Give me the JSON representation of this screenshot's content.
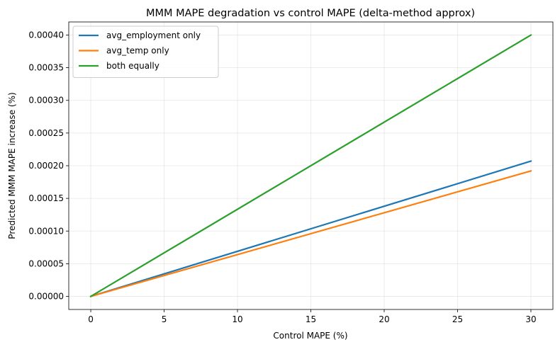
{
  "chart_data": {
    "type": "line",
    "title": "MMM MAPE degradation vs control MAPE (delta-method approx)",
    "xlabel": "Control MAPE (%)",
    "ylabel": "Predicted MMM MAPE increase (%)",
    "xlim": [
      -1.5,
      31.5
    ],
    "ylim": [
      -2e-05,
      0.00042
    ],
    "xticks": [
      0,
      5,
      10,
      15,
      20,
      25,
      30
    ],
    "xtick_labels": [
      "0",
      "5",
      "10",
      "15",
      "20",
      "25",
      "30"
    ],
    "yticks": [
      0,
      5e-05,
      0.0001,
      0.00015,
      0.0002,
      0.00025,
      0.0003,
      0.00035,
      0.0004
    ],
    "ytick_labels": [
      "0.00000",
      "0.00005",
      "0.00010",
      "0.00015",
      "0.00020",
      "0.00025",
      "0.00030",
      "0.00035",
      "0.00040"
    ],
    "grid": true,
    "legend_position": "top-left",
    "series": [
      {
        "name": "avg_employment only",
        "color": "#1f77b4",
        "x": [
          0,
          30
        ],
        "y": [
          0,
          0.000207
        ]
      },
      {
        "name": "avg_temp only",
        "color": "#ff7f0e",
        "x": [
          0,
          30
        ],
        "y": [
          0,
          0.000192
        ]
      },
      {
        "name": "both equally",
        "color": "#2ca02c",
        "x": [
          0,
          30
        ],
        "y": [
          0,
          0.0004
        ]
      }
    ]
  }
}
